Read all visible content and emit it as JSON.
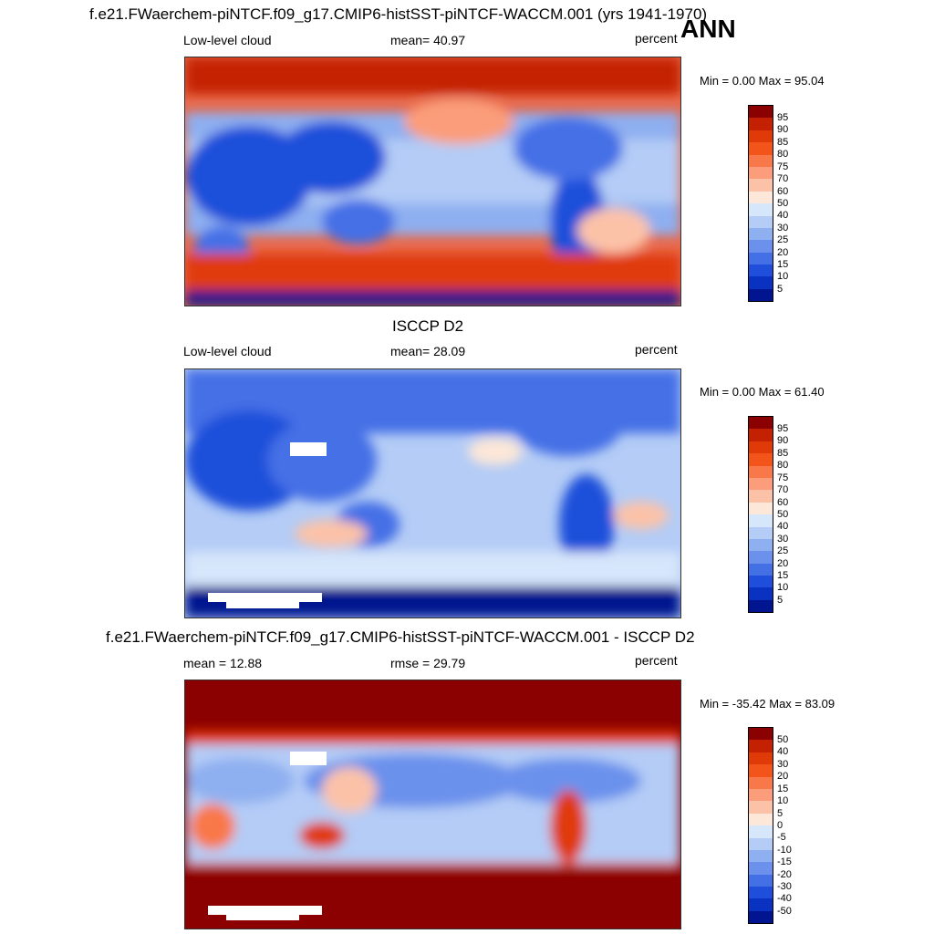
{
  "header": {
    "title": "f.e21.FWaerchem-piNTCF.f09_g17.CMIP6-histSST-piNTCF-WACCM.001 (yrs 1941-1970)",
    "season": "ANN"
  },
  "panel1": {
    "left_label": "Low-level cloud",
    "mean_text": "mean=  40.97",
    "units": "percent",
    "minmax": "Min =   0.00 Max =  95.04"
  },
  "panel2": {
    "title": "ISCCP D2",
    "left_label": "Low-level cloud",
    "mean_text": "mean=  28.09",
    "units": "percent",
    "minmax": "Min =   0.00 Max =  61.40"
  },
  "panel3": {
    "title": "f.e21.FWaerchem-piNTCF.f09_g17.CMIP6-histSST-piNTCF-WACCM.001 - ISCCP D2",
    "left_label": "mean =  12.88",
    "rmse_text": "rmse =  29.79",
    "units": "percent",
    "minmax": "Min = -35.42 Max =  83.09"
  },
  "colorbar_abs": {
    "levels": [
      "95",
      "90",
      "85",
      "80",
      "75",
      "70",
      "60",
      "50",
      "40",
      "30",
      "25",
      "20",
      "15",
      "10",
      "5"
    ],
    "colors": [
      "#8b0000",
      "#c42103",
      "#e03a08",
      "#f2541a",
      "#f9784a",
      "#fb9d7a",
      "#fcc2a8",
      "#fde7d8",
      "#d6e6fb",
      "#b4ccf6",
      "#8eaff0",
      "#6b91ec",
      "#4470e6",
      "#1f4fda",
      "#0a32c0",
      "#00158f"
    ]
  },
  "colorbar_diff": {
    "levels": [
      "50",
      "40",
      "30",
      "20",
      "15",
      "10",
      "5",
      "0",
      "-5",
      "-10",
      "-15",
      "-20",
      "-30",
      "-40",
      "-50"
    ],
    "colors": [
      "#8b0000",
      "#c42103",
      "#e03a08",
      "#f2541a",
      "#f9784a",
      "#fb9d7a",
      "#fcc2a8",
      "#fde7d8",
      "#d6e6fb",
      "#b4ccf6",
      "#8eaff0",
      "#6b91ec",
      "#4470e6",
      "#1f4fda",
      "#0a32c0",
      "#00158f"
    ]
  }
}
